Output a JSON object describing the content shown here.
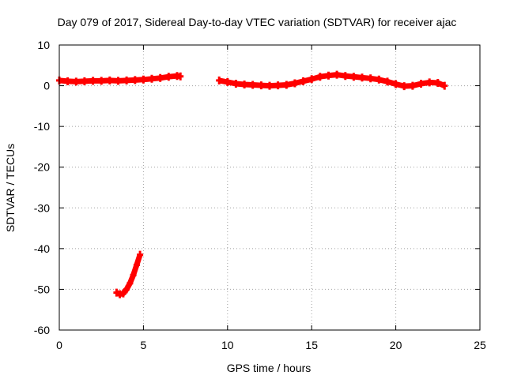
{
  "chart_data": {
    "type": "scatter",
    "title": "Day 079 of 2017, Sidereal Day-to-day VTEC variation (SDTVAR) for receiver ajac",
    "xlabel": "GPS time / hours",
    "ylabel": "SDTVAR / TECUs",
    "xlim": [
      0,
      25
    ],
    "ylim": [
      -60,
      10
    ],
    "xticks": [
      0,
      5,
      10,
      15,
      20,
      25
    ],
    "yticks": [
      10,
      0,
      -10,
      -20,
      -30,
      -40,
      -50,
      -60
    ],
    "xtick_labels": [
      "0",
      "5",
      "10",
      "15",
      "20",
      "25"
    ],
    "ytick_labels": [
      "10",
      "0",
      "-10",
      "-20",
      "-30",
      "-40",
      "-50",
      "-60"
    ],
    "grid": true,
    "legend": "none",
    "series": [
      {
        "color": "#ff0000",
        "segments": [
          [
            [
              0.0,
              1.3
            ],
            [
              0.5,
              1.1
            ],
            [
              1.0,
              1.0
            ],
            [
              1.5,
              1.1
            ],
            [
              2.0,
              1.2
            ],
            [
              2.5,
              1.2
            ],
            [
              3.0,
              1.3
            ],
            [
              3.5,
              1.2
            ],
            [
              4.0,
              1.3
            ],
            [
              4.5,
              1.4
            ],
            [
              5.0,
              1.5
            ],
            [
              5.5,
              1.7
            ],
            [
              6.0,
              1.9
            ],
            [
              6.5,
              2.2
            ],
            [
              7.0,
              2.4
            ],
            [
              7.2,
              2.3
            ]
          ],
          [
            [
              9.5,
              1.3
            ],
            [
              10.0,
              0.9
            ],
            [
              10.5,
              0.5
            ],
            [
              11.0,
              0.3
            ],
            [
              11.5,
              0.2
            ],
            [
              12.0,
              0.1
            ],
            [
              12.5,
              0.0
            ],
            [
              13.0,
              0.1
            ],
            [
              13.5,
              0.2
            ],
            [
              14.0,
              0.6
            ],
            [
              14.5,
              1.1
            ],
            [
              15.0,
              1.6
            ],
            [
              15.5,
              2.2
            ],
            [
              16.0,
              2.5
            ],
            [
              16.5,
              2.7
            ],
            [
              17.0,
              2.4
            ],
            [
              17.5,
              2.2
            ],
            [
              18.0,
              2.0
            ],
            [
              18.5,
              1.8
            ],
            [
              19.0,
              1.5
            ],
            [
              19.5,
              1.0
            ],
            [
              20.0,
              0.4
            ],
            [
              20.5,
              -0.1
            ],
            [
              21.0,
              0.0
            ],
            [
              21.5,
              0.5
            ],
            [
              22.0,
              0.8
            ],
            [
              22.5,
              0.7
            ],
            [
              22.9,
              0.0
            ]
          ],
          [
            [
              3.4,
              -50.8
            ],
            [
              3.6,
              -51.2
            ],
            [
              3.8,
              -51.0
            ],
            [
              4.0,
              -50.0
            ],
            [
              4.2,
              -48.5
            ],
            [
              4.4,
              -46.5
            ],
            [
              4.6,
              -44.0
            ],
            [
              4.8,
              -41.5
            ]
          ]
        ]
      }
    ]
  }
}
